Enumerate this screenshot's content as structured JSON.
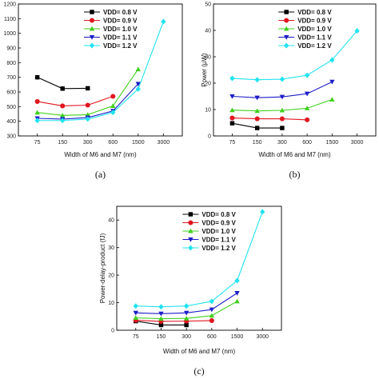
{
  "colors": {
    "0.8": "#000000",
    "0.9": "#e0161f",
    "1.0": "#3fd01b",
    "1.1": "#1c1cc8",
    "1.2": "#22e3f0"
  },
  "chart_data": [
    {
      "id": "a",
      "type": "line",
      "caption": "(a)",
      "xlabel": "Width of  M6 and M7 (nm)",
      "ylabel": "",
      "categories": [
        "75",
        "150",
        "300",
        "600",
        "1500",
        "3000"
      ],
      "ylim": [
        300,
        1200
      ],
      "yticks": [
        300,
        400,
        500,
        600,
        700,
        800,
        900,
        1000,
        1100,
        1200
      ],
      "legend_position": "top-left",
      "grid": false,
      "series": [
        {
          "name": "VDD= 0.8 V",
          "key": "0.8",
          "marker": "square",
          "values": [
            700,
            623,
            625,
            null,
            null,
            null
          ]
        },
        {
          "name": "VDD= 0.9 V",
          "key": "0.9",
          "marker": "circle",
          "values": [
            535,
            505,
            510,
            570,
            null,
            null
          ]
        },
        {
          "name": "VDD= 1.0 V",
          "key": "1.0",
          "marker": "triangle-up",
          "values": [
            460,
            440,
            445,
            505,
            755,
            null
          ]
        },
        {
          "name": "VDD= 1.1 V",
          "key": "1.1",
          "marker": "triangle-down",
          "values": [
            420,
            415,
            425,
            470,
            655,
            null
          ]
        },
        {
          "name": "VDD= 1.2 V",
          "key": "1.2",
          "marker": "diamond",
          "values": [
            405,
            405,
            415,
            460,
            620,
            1080
          ]
        }
      ]
    },
    {
      "id": "b",
      "type": "line",
      "caption": "(b)",
      "xlabel": "Width of  M6 and M7 (nm)",
      "ylabel": "Power (µW)",
      "categories": [
        "75",
        "150",
        "300",
        "600",
        "1500",
        "3000"
      ],
      "ylim": [
        0,
        50
      ],
      "yticks": [
        0,
        10,
        20,
        30,
        40,
        50
      ],
      "legend_position": "top-left",
      "grid": false,
      "series": [
        {
          "name": "VDD= 0.8 V",
          "key": "0.8",
          "marker": "square",
          "values": [
            4.8,
            3.0,
            3.0,
            null,
            null,
            null
          ]
        },
        {
          "name": "VDD= 0.9 V",
          "key": "0.9",
          "marker": "circle",
          "values": [
            6.8,
            6.5,
            6.5,
            6.1,
            null,
            null
          ]
        },
        {
          "name": "VDD= 1.0 V",
          "key": "1.0",
          "marker": "triangle-up",
          "values": [
            9.8,
            9.5,
            9.7,
            10.5,
            13.8,
            null
          ]
        },
        {
          "name": "VDD= 1.1 V",
          "key": "1.1",
          "marker": "triangle-down",
          "values": [
            15.0,
            14.5,
            14.8,
            16.0,
            20.5,
            null
          ]
        },
        {
          "name": "VDD= 1.2 V",
          "key": "1.2",
          "marker": "diamond",
          "values": [
            21.8,
            21.3,
            21.5,
            23.0,
            28.8,
            39.8
          ]
        }
      ]
    },
    {
      "id": "c",
      "type": "line",
      "caption": "(c)",
      "xlabel": "Width of  M6 and M7 (nm)",
      "ylabel": "Power-delay-product (fJ)",
      "categories": [
        "75",
        "150",
        "300",
        "600",
        "1500",
        "3000"
      ],
      "ylim": [
        0,
        45
      ],
      "yticks": [
        0,
        10,
        20,
        30,
        40
      ],
      "legend_position": "top-left",
      "grid": false,
      "series": [
        {
          "name": "VDD= 0.8 V",
          "key": "0.8",
          "marker": "square",
          "values": [
            3.3,
            1.9,
            1.9,
            null,
            null,
            null
          ]
        },
        {
          "name": "VDD= 0.9 V",
          "key": "0.9",
          "marker": "circle",
          "values": [
            3.6,
            3.2,
            3.3,
            3.5,
            null,
            null
          ]
        },
        {
          "name": "VDD= 1.0 V",
          "key": "1.0",
          "marker": "triangle-up",
          "values": [
            4.5,
            4.2,
            4.3,
            5.3,
            10.5,
            null
          ]
        },
        {
          "name": "VDD= 1.1 V",
          "key": "1.1",
          "marker": "triangle-down",
          "values": [
            6.3,
            6.0,
            6.3,
            7.5,
            13.5,
            null
          ]
        },
        {
          "name": "VDD= 1.2 V",
          "key": "1.2",
          "marker": "diamond",
          "values": [
            8.8,
            8.5,
            8.8,
            10.5,
            18.0,
            43.0
          ]
        }
      ]
    }
  ]
}
